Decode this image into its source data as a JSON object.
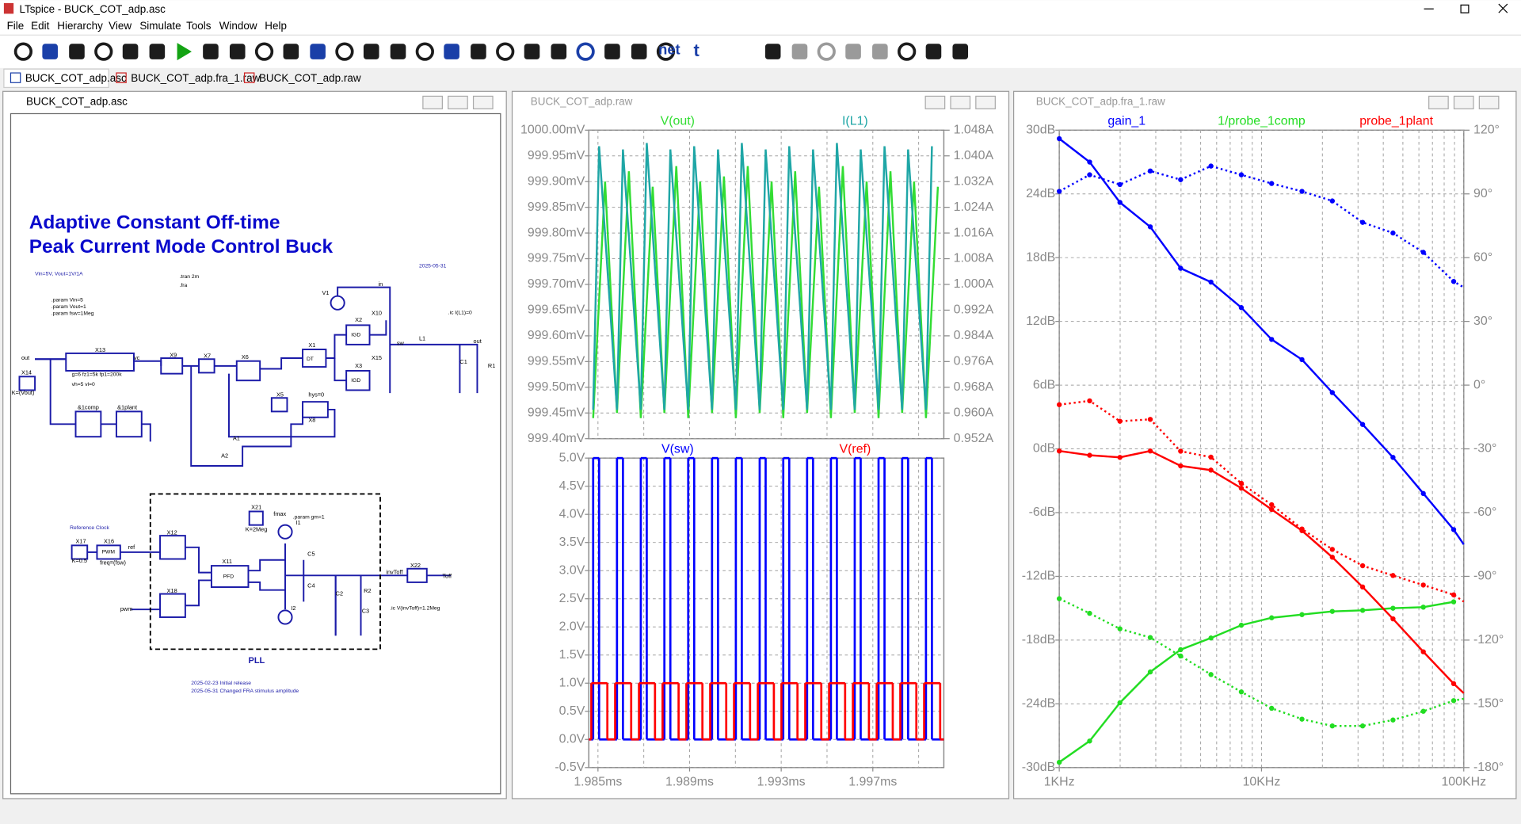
{
  "window": {
    "title": "LTspice - BUCK_COT_adp.asc",
    "menu": [
      "File",
      "Edit",
      "Hierarchy",
      "View",
      "Simulate",
      "Tools",
      "Window",
      "Help"
    ],
    "toolbar_text": [
      "net",
      "t"
    ],
    "tabs": [
      "BUCK_COT_adp.asc",
      "BUCK_COT_adp.fra_1.raw",
      "BUCK_COT_adp.raw"
    ],
    "panes": [
      "BUCK_COT_adp.asc",
      "BUCK_COT_adp.raw",
      "BUCK_COT_adp.fra_1.raw"
    ]
  },
  "schematic": {
    "labels": [
      "Adaptive Constant Off-time",
      "Peak Current Mode Control Buck",
      "Vin=5V, Vout=1V/1A",
      "2025-05-31",
      ".tran 2m",
      ".fra",
      ".param Vin=5",
      ".param Vout=1",
      ".param fsw=1Meg",
      ".ic I(L1)=0",
      "Reference Clock",
      ".param gm=1",
      ".ic V(invToff)=1.2Meg",
      "PLL",
      "2025-02-23     Initial release",
      "2025-05-31     Changed FRA stimulus amplitude",
      "X13",
      "X9",
      "X7",
      "X6",
      "X1",
      "X2",
      "X3",
      "X10",
      "X15",
      "V1",
      "L1",
      "C1",
      "R1",
      "X14",
      "X5",
      "X8",
      "A1",
      "A2",
      "X17",
      "X16",
      "X12",
      "X18",
      "X11",
      "X21",
      "X22",
      "C5",
      "C4",
      "C2",
      "R2",
      "C3",
      "I1",
      "I2",
      "&1comp",
      "&1plant",
      "in",
      "sw",
      "out",
      "vc",
      "ref",
      "pwm",
      "Toff",
      "invToff",
      "hys=0",
      "PWM",
      "PFD",
      "IGD",
      "IGD",
      "DT",
      "K=(Vout)",
      "g=6 fz1=5k fp1=200k",
      "vh=5 vl=0",
      "K=0.5",
      "freq=(fsw)",
      "K=2Meg",
      "fmax",
      "out"
    ]
  },
  "chart_data": [
    {
      "type": "line",
      "grid": true,
      "xlim": [
        1.9846,
        2.0001
      ],
      "xgrid": [
        1.985,
        1.987,
        1.989,
        1.991,
        1.993,
        1.995,
        1.997,
        1.999
      ],
      "ylim": [
        999.4,
        1000.0
      ],
      "yticks": [
        {
          "value": 999.4,
          "label": "999.40mV"
        },
        {
          "value": 999.45,
          "label": "999.45mV"
        },
        {
          "value": 999.5,
          "label": "999.50mV"
        },
        {
          "value": 999.55,
          "label": "999.55mV"
        },
        {
          "value": 999.6,
          "label": "999.60mV"
        },
        {
          "value": 999.65,
          "label": "999.65mV"
        },
        {
          "value": 999.7,
          "label": "999.70mV"
        },
        {
          "value": 999.75,
          "label": "999.75mV"
        },
        {
          "value": 999.8,
          "label": "999.80mV"
        },
        {
          "value": 999.85,
          "label": "999.85mV"
        },
        {
          "value": 999.9,
          "label": "999.90mV"
        },
        {
          "value": 999.95,
          "label": "999.95mV"
        },
        {
          "value": 1000.0,
          "label": "1000.00mV"
        }
      ],
      "y2lim": [
        0.952,
        1.048
      ],
      "y2ticks": [
        {
          "value": 0.952,
          "label": "0.952A"
        },
        {
          "value": 0.96,
          "label": "0.960A"
        },
        {
          "value": 0.968,
          "label": "0.968A"
        },
        {
          "value": 0.976,
          "label": "0.976A"
        },
        {
          "value": 0.984,
          "label": "0.984A"
        },
        {
          "value": 0.992,
          "label": "0.992A"
        },
        {
          "value": 1.0,
          "label": "1.000A"
        },
        {
          "value": 1.008,
          "label": "1.008A"
        },
        {
          "value": 1.016,
          "label": "1.016A"
        },
        {
          "value": 1.024,
          "label": "1.024A"
        },
        {
          "value": 1.032,
          "label": "1.032A"
        },
        {
          "value": 1.04,
          "label": "1.040A"
        },
        {
          "value": 1.048,
          "label": "1.048A"
        }
      ],
      "series": [
        {
          "name": "V(out)",
          "color": "#33dd33",
          "x": [
            1.98479,
            1.98531,
            1.98583,
            1.98635,
            1.98687,
            1.98739,
            1.9879,
            1.98842,
            1.98894,
            1.98946,
            1.98998,
            1.9905,
            1.99102,
            1.99154,
            1.99206,
            1.99258,
            1.99309,
            1.99361,
            1.99413,
            1.99465,
            1.99517,
            1.99569,
            1.99621,
            1.99673,
            1.99725,
            1.99777,
            1.99828,
            1.9988,
            1.99932,
            1.99984
          ],
          "values": [
            999.44,
            999.9,
            999.45,
            999.92,
            999.44,
            999.89,
            999.45,
            999.93,
            999.44,
            999.9,
            999.45,
            999.91,
            999.44,
            999.93,
            999.45,
            999.9,
            999.44,
            999.92,
            999.45,
            999.89,
            999.44,
            999.93,
            999.45,
            999.9,
            999.44,
            999.92,
            999.45,
            999.9,
            999.44,
            999.89
          ]
        },
        {
          "name": "I(L1)",
          "color": "#1fa6a6",
          "axis": "y2",
          "x": [
            1.98479,
            1.98505,
            1.98583,
            1.98609,
            1.98687,
            1.98713,
            1.9879,
            1.98816,
            1.98894,
            1.9892,
            1.98998,
            1.99024,
            1.99102,
            1.99128,
            1.99206,
            1.99232,
            1.99309,
            1.99335,
            1.99413,
            1.99439,
            1.99517,
            1.99543,
            1.99621,
            1.99647,
            1.99725,
            1.99751,
            1.99828,
            1.99854,
            1.99932,
            1.99958
          ],
          "values": [
            0.961,
            1.043,
            0.961,
            1.042,
            0.961,
            1.044,
            0.961,
            1.042,
            0.961,
            1.043,
            0.961,
            1.042,
            0.961,
            1.044,
            0.961,
            1.042,
            0.961,
            1.043,
            0.961,
            1.042,
            0.961,
            1.044,
            0.961,
            1.042,
            0.961,
            1.043,
            0.961,
            1.042,
            0.961,
            1.043
          ]
        }
      ]
    },
    {
      "type": "line",
      "grid": true,
      "xlim": [
        1.9846,
        2.0001
      ],
      "xgrid": [
        1.985,
        1.987,
        1.989,
        1.991,
        1.993,
        1.995,
        1.997,
        1.999
      ],
      "xticks": [
        {
          "value": 1.985,
          "label": "1.985ms"
        },
        {
          "value": 1.989,
          "label": "1.989ms"
        },
        {
          "value": 1.993,
          "label": "1.993ms"
        },
        {
          "value": 1.997,
          "label": "1.997ms"
        }
      ],
      "ylim": [
        -0.5,
        5.0
      ],
      "yticks": [
        {
          "value": -0.5,
          "label": "-0.5V"
        },
        {
          "value": 0.0,
          "label": "0.0V"
        },
        {
          "value": 0.5,
          "label": "0.5V"
        },
        {
          "value": 1.0,
          "label": "1.0V"
        },
        {
          "value": 1.5,
          "label": "1.5V"
        },
        {
          "value": 2.0,
          "label": "2.0V"
        },
        {
          "value": 2.5,
          "label": "2.5V"
        },
        {
          "value": 3.0,
          "label": "3.0V"
        },
        {
          "value": 3.5,
          "label": "3.5V"
        },
        {
          "value": 4.0,
          "label": "4.0V"
        },
        {
          "value": 4.5,
          "label": "4.5V"
        },
        {
          "value": 5.0,
          "label": "5.0V"
        }
      ],
      "series": [
        {
          "name": "V(sw)",
          "color": "#0000ff",
          "step": true,
          "x": [
            1.9846,
            1.98479,
            1.98505,
            1.98583,
            1.98609,
            1.98687,
            1.98713,
            1.9879,
            1.98816,
            1.98894,
            1.9892,
            1.98998,
            1.99024,
            1.99102,
            1.99128,
            1.99206,
            1.99232,
            1.99309,
            1.99335,
            1.99413,
            1.99439,
            1.99517,
            1.99543,
            1.99621,
            1.99647,
            1.99725,
            1.99751,
            1.99828,
            1.99854,
            1.99932,
            1.99958,
            2.0001
          ],
          "values": [
            0,
            5,
            0,
            5,
            0,
            5,
            0,
            5,
            0,
            5,
            0,
            5,
            0,
            5,
            0,
            5,
            0,
            5,
            0,
            5,
            0,
            5,
            0,
            5,
            0,
            5,
            0,
            5,
            0,
            5,
            0,
            0
          ]
        },
        {
          "name": "V(ref)",
          "color": "#ff0000",
          "step": true,
          "x": [
            1.9846,
            1.98471,
            1.98541,
            1.98575,
            1.98645,
            1.98679,
            1.98749,
            1.98782,
            1.98852,
            1.98886,
            1.98956,
            1.9899,
            1.9906,
            1.99094,
            1.99164,
            1.99198,
            1.99268,
            1.99301,
            1.99371,
            1.99405,
            1.99475,
            1.99509,
            1.99579,
            1.99613,
            1.99683,
            1.99717,
            1.99787,
            1.9982,
            1.9989,
            1.99924,
            1.99994,
            2.0001
          ],
          "values": [
            0,
            1,
            0,
            1,
            0,
            1,
            0,
            1,
            0,
            1,
            0,
            1,
            0,
            1,
            0,
            1,
            0,
            1,
            0,
            1,
            0,
            1,
            0,
            1,
            0,
            1,
            0,
            1,
            0,
            1,
            0,
            0
          ]
        }
      ]
    },
    {
      "type": "bode",
      "grid": true,
      "xscale": "log",
      "markers": true,
      "xlim": [
        1000,
        100000
      ],
      "xticks": [
        {
          "value": 1000,
          "label": "1KHz"
        },
        {
          "value": 10000,
          "label": "10KHz"
        },
        {
          "value": 100000,
          "label": "100KHz"
        }
      ],
      "xminor": [
        2000,
        3000,
        4000,
        5000,
        6000,
        7000,
        8000,
        9000,
        20000,
        30000,
        40000,
        50000,
        60000,
        70000,
        80000,
        90000
      ],
      "ylim": [
        -30,
        30
      ],
      "yticks": [
        {
          "value": -30,
          "label": "-30dB"
        },
        {
          "value": -24,
          "label": "-24dB"
        },
        {
          "value": -18,
          "label": "-18dB"
        },
        {
          "value": -12,
          "label": "-12dB"
        },
        {
          "value": -6,
          "label": "-6dB"
        },
        {
          "value": 0,
          "label": "0dB"
        },
        {
          "value": 6,
          "label": "6dB"
        },
        {
          "value": 12,
          "label": "12dB"
        },
        {
          "value": 18,
          "label": "18dB"
        },
        {
          "value": 24,
          "label": "24dB"
        },
        {
          "value": 30,
          "label": "30dB"
        }
      ],
      "y2lim": [
        -180,
        120
      ],
      "y2ticks": [
        {
          "value": -180,
          "label": "-180°"
        },
        {
          "value": -150,
          "label": "-150°"
        },
        {
          "value": -120,
          "label": "-120°"
        },
        {
          "value": -90,
          "label": "-90°"
        },
        {
          "value": -60,
          "label": "-60°"
        },
        {
          "value": -30,
          "label": "-30°"
        },
        {
          "value": 0,
          "label": "0°"
        },
        {
          "value": 30,
          "label": "30°"
        },
        {
          "value": 60,
          "label": "60°"
        },
        {
          "value": 90,
          "label": "90°"
        },
        {
          "value": 120,
          "label": "120°"
        }
      ],
      "x": [
        1000,
        1413,
        1995,
        2818,
        3981,
        5623,
        7943,
        11220,
        15850,
        22390,
        31620,
        44670,
        63100,
        89130,
        100000
      ],
      "series": [
        {
          "name": "gain_1",
          "color": "#0000ff",
          "values": [
            29.2,
            27.0,
            23.2,
            20.9,
            17.0,
            15.7,
            13.3,
            10.3,
            8.4,
            5.3,
            2.3,
            -0.8,
            -4.2,
            -7.6,
            -9.0
          ],
          "phase": [
            91.2,
            99.0,
            94.4,
            100.8,
            96.7,
            103.1,
            99.0,
            94.9,
            91.2,
            86.7,
            76.6,
            71.6,
            62.5,
            48.8,
            46.0
          ]
        },
        {
          "name": "1/probe_1comp",
          "color": "#22dd22",
          "values": [
            -29.5,
            -27.5,
            -23.9,
            -21.0,
            -18.9,
            -17.8,
            -16.6,
            -15.9,
            -15.6,
            -15.3,
            -15.2,
            -15.0,
            -14.9,
            -14.4,
            null
          ],
          "phase": [
            -100.5,
            -107.4,
            -114.7,
            -118.8,
            -127.5,
            -136.2,
            -144.4,
            -152.1,
            -157.2,
            -160.4,
            -160.4,
            -157.6,
            -153.5,
            -148.5,
            -147.6
          ]
        },
        {
          "name": "probe_1plant",
          "color": "#ff0000",
          "values": [
            -0.2,
            -0.6,
            -0.8,
            -0.2,
            -1.6,
            -2.0,
            -3.7,
            -5.7,
            -7.7,
            -10.2,
            -13.0,
            -16.0,
            -19.1,
            -22.1,
            -23.0
          ],
          "phase": [
            -9.2,
            -7.4,
            -17.0,
            -16.1,
            -31.1,
            -33.9,
            -46.2,
            -56.3,
            -67.7,
            -77.3,
            -85.0,
            -89.6,
            -94.1,
            -98.7,
            -101.9
          ]
        }
      ]
    }
  ]
}
